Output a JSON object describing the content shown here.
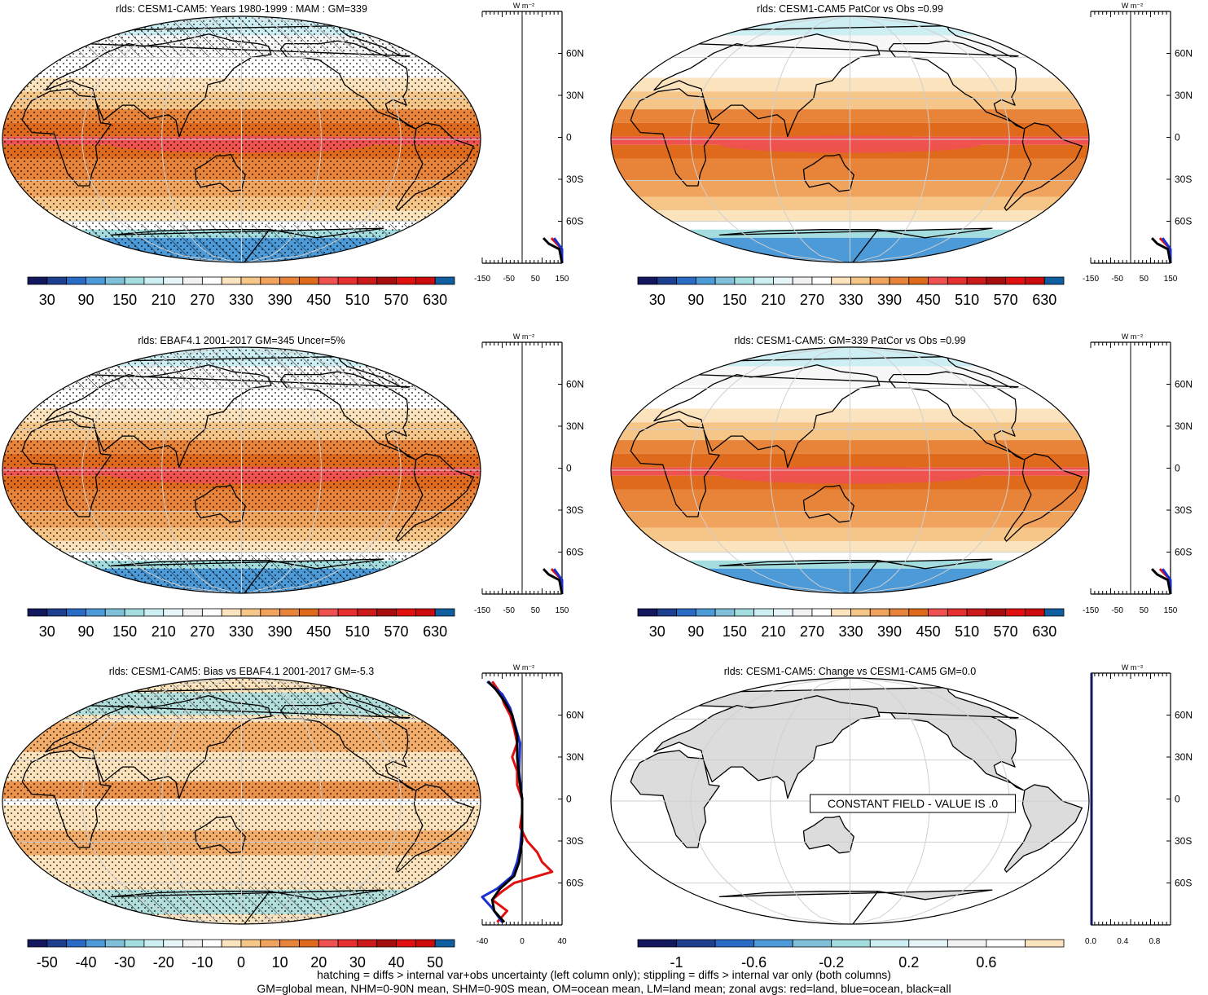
{
  "panels": [
    {
      "id": "p1",
      "title": "rlds: CESM1-CAM5: Years 1980-1999 : MAM : GM=339",
      "kind": "abs",
      "hatch": true,
      "stipple": true,
      "colorbar": {
        "labels": [
          "30",
          "90",
          "150",
          "210",
          "270",
          "330",
          "390",
          "450",
          "510",
          "570",
          "630"
        ],
        "n_boxes": 22
      },
      "zonal": {
        "x_ticks": [
          "-150",
          "-50",
          "50",
          "150"
        ],
        "x_min": -150,
        "x_max": 150,
        "lat_ticks": [
          "60N",
          "30N",
          "0",
          "30S",
          "60S"
        ],
        "units": "W m⁻²"
      }
    },
    {
      "id": "p2",
      "title": "rlds: CESM1-CAM5 PatCor vs Obs =0.99",
      "kind": "abs",
      "hatch": false,
      "stipple": false,
      "colorbar": {
        "labels": [
          "30",
          "90",
          "150",
          "210",
          "270",
          "330",
          "390",
          "450",
          "510",
          "570",
          "630"
        ],
        "n_boxes": 22
      },
      "zonal": {
        "x_ticks": [
          "-150",
          "-50",
          "50",
          "150"
        ],
        "x_min": -150,
        "x_max": 150,
        "lat_ticks": [
          "60N",
          "30N",
          "0",
          "30S",
          "60S"
        ],
        "units": "W m⁻²"
      }
    },
    {
      "id": "p3",
      "title": "rlds: EBAF4.1 2001-2017 GM=345 Uncer=5%",
      "kind": "abs",
      "hatch": true,
      "stipple": true,
      "colorbar": {
        "labels": [
          "30",
          "90",
          "150",
          "210",
          "270",
          "330",
          "390",
          "450",
          "510",
          "570",
          "630"
        ],
        "n_boxes": 22
      },
      "zonal": {
        "x_ticks": [
          "-150",
          "-50",
          "50",
          "150"
        ],
        "x_min": -150,
        "x_max": 150,
        "lat_ticks": [
          "60N",
          "30N",
          "0",
          "30S",
          "60S"
        ],
        "units": "W m⁻²"
      }
    },
    {
      "id": "p4",
      "title": "rlds: CESM1-CAM5: GM=339 PatCor vs Obs =0.99",
      "kind": "abs",
      "hatch": false,
      "stipple": false,
      "colorbar": {
        "labels": [
          "30",
          "90",
          "150",
          "210",
          "270",
          "330",
          "390",
          "450",
          "510",
          "570",
          "630"
        ],
        "n_boxes": 22
      },
      "zonal": {
        "x_ticks": [
          "-150",
          "-50",
          "50",
          "150"
        ],
        "x_min": -150,
        "x_max": 150,
        "lat_ticks": [
          "60N",
          "30N",
          "0",
          "30S",
          "60S"
        ],
        "units": "W m⁻²"
      }
    },
    {
      "id": "p5",
      "title": "rlds: CESM1-CAM5: Bias vs EBAF4.1 2001-2017 GM=-5.3",
      "kind": "bias",
      "hatch": true,
      "stipple": true,
      "colorbar": {
        "labels": [
          "-50",
          "-40",
          "-30",
          "-20",
          "-10",
          "0",
          "10",
          "20",
          "30",
          "40",
          "50"
        ],
        "n_boxes": 22
      },
      "zonal": {
        "x_ticks": [
          "-40",
          "0",
          "40"
        ],
        "x_min": -40,
        "x_max": 40,
        "lat_ticks": [
          "60N",
          "30N",
          "0",
          "30S",
          "60S"
        ],
        "units": "W m⁻²"
      }
    },
    {
      "id": "p6",
      "title": "rlds: CESM1-CAM5: Change vs CESM1-CAM5 GM=0.0",
      "kind": "const",
      "hatch": false,
      "stipple": false,
      "message": "CONSTANT FIELD - VALUE IS .0",
      "colorbar": {
        "labels": [
          "-1",
          "-0.6",
          "-0.2",
          "0.2",
          "0.6"
        ],
        "n_boxes": 11
      },
      "zonal": {
        "x_ticks": [
          "0.0",
          "0.4",
          "0.8"
        ],
        "x_min": 0,
        "x_max": 1,
        "lat_ticks": [
          "60N",
          "30N",
          "0",
          "30S",
          "60S"
        ],
        "units": "W m⁻²"
      }
    }
  ],
  "palettes": {
    "abs": [
      "#13175e",
      "#1e3f8f",
      "#2a6cc5",
      "#4c9ad8",
      "#7fc0d8",
      "#a4dde0",
      "#cdeef3",
      "#e6f5f8",
      "#f2f2f2",
      "#ffffff",
      "#fbe3bd",
      "#f5c688",
      "#f0a35d",
      "#e8843a",
      "#e06a1c",
      "#ef5151",
      "#e62f2f",
      "#cc1a1a",
      "#a80d0d",
      "#e01010",
      "#cc0c0c",
      "#0f5fa0"
    ],
    "bias": [
      "#13175e",
      "#1e3f8f",
      "#2a6cc5",
      "#4c9ad8",
      "#7fc0d8",
      "#a4dde0",
      "#cdeef3",
      "#e6f5f8",
      "#f2f2f2",
      "#ffffff",
      "#fbe3bd",
      "#f5c688",
      "#f0a35d",
      "#e8843a",
      "#e06a1c",
      "#ef5151",
      "#e62f2f",
      "#cc1a1a",
      "#a80d0d",
      "#e01010",
      "#cc0c0c",
      "#0f5fa0"
    ],
    "const": [
      "#13175e",
      "#1e3f8f",
      "#2a6cc5",
      "#4c9ad8",
      "#7fc0d8",
      "#a4dde0",
      "#cdeef3",
      "#e6f5f8",
      "#f2f2f2",
      "#ffffff",
      "#fbe3bd"
    ]
  },
  "zonal_curves": {
    "abs_land": [
      [
        -90,
        170
      ],
      [
        -80,
        158
      ],
      [
        -72,
        110
      ]
    ],
    "abs_ocean": [
      [
        -90,
        168
      ],
      [
        -80,
        150
      ],
      [
        -72,
        120
      ]
    ],
    "abs_all": [
      [
        -90,
        165
      ],
      [
        -80,
        140
      ],
      [
        -76,
        100
      ],
      [
        -72,
        80
      ]
    ],
    "bias_land": [
      [
        -88,
        -25
      ],
      [
        -80,
        -15
      ],
      [
        -72,
        -30
      ],
      [
        -66,
        -20
      ],
      [
        -60,
        -8
      ],
      [
        -52,
        30
      ],
      [
        -45,
        20
      ],
      [
        -38,
        15
      ],
      [
        -30,
        5
      ],
      [
        -20,
        -2
      ],
      [
        -10,
        0
      ],
      [
        0,
        0
      ],
      [
        10,
        -5
      ],
      [
        20,
        -5
      ],
      [
        30,
        -10
      ],
      [
        40,
        -5
      ],
      [
        50,
        -8
      ],
      [
        60,
        -12
      ],
      [
        68,
        -18
      ],
      [
        76,
        -22
      ],
      [
        84,
        -30
      ]
    ],
    "bias_ocean": [
      [
        -88,
        -20
      ],
      [
        -78,
        -30
      ],
      [
        -70,
        -40
      ],
      [
        -64,
        -25
      ],
      [
        -55,
        -10
      ],
      [
        -45,
        -5
      ],
      [
        -35,
        -2
      ],
      [
        -20,
        0
      ],
      [
        0,
        0
      ],
      [
        20,
        -3
      ],
      [
        40,
        -2
      ],
      [
        55,
        -8
      ],
      [
        65,
        -12
      ],
      [
        75,
        -20
      ],
      [
        84,
        -35
      ]
    ],
    "bias_all": [
      [
        -88,
        -18
      ],
      [
        -80,
        -28
      ],
      [
        -72,
        -30
      ],
      [
        -64,
        -22
      ],
      [
        -55,
        -8
      ],
      [
        -45,
        -3
      ],
      [
        -30,
        0
      ],
      [
        -10,
        0
      ],
      [
        0,
        0
      ],
      [
        15,
        -3
      ],
      [
        30,
        -5
      ],
      [
        45,
        -5
      ],
      [
        60,
        -10
      ],
      [
        70,
        -18
      ],
      [
        78,
        -26
      ],
      [
        84,
        -34
      ]
    ]
  },
  "footer": {
    "line1": "hatching = diffs > internal var+obs uncertainty (left column only); stippling = diffs > internal var only (both columns)",
    "line2": "GM=global mean, NHM=0-90N mean, SHM=0-90S mean, OM=ocean mean, LM=land mean; zonal avgs: red=land, blue=ocean, black=all"
  }
}
